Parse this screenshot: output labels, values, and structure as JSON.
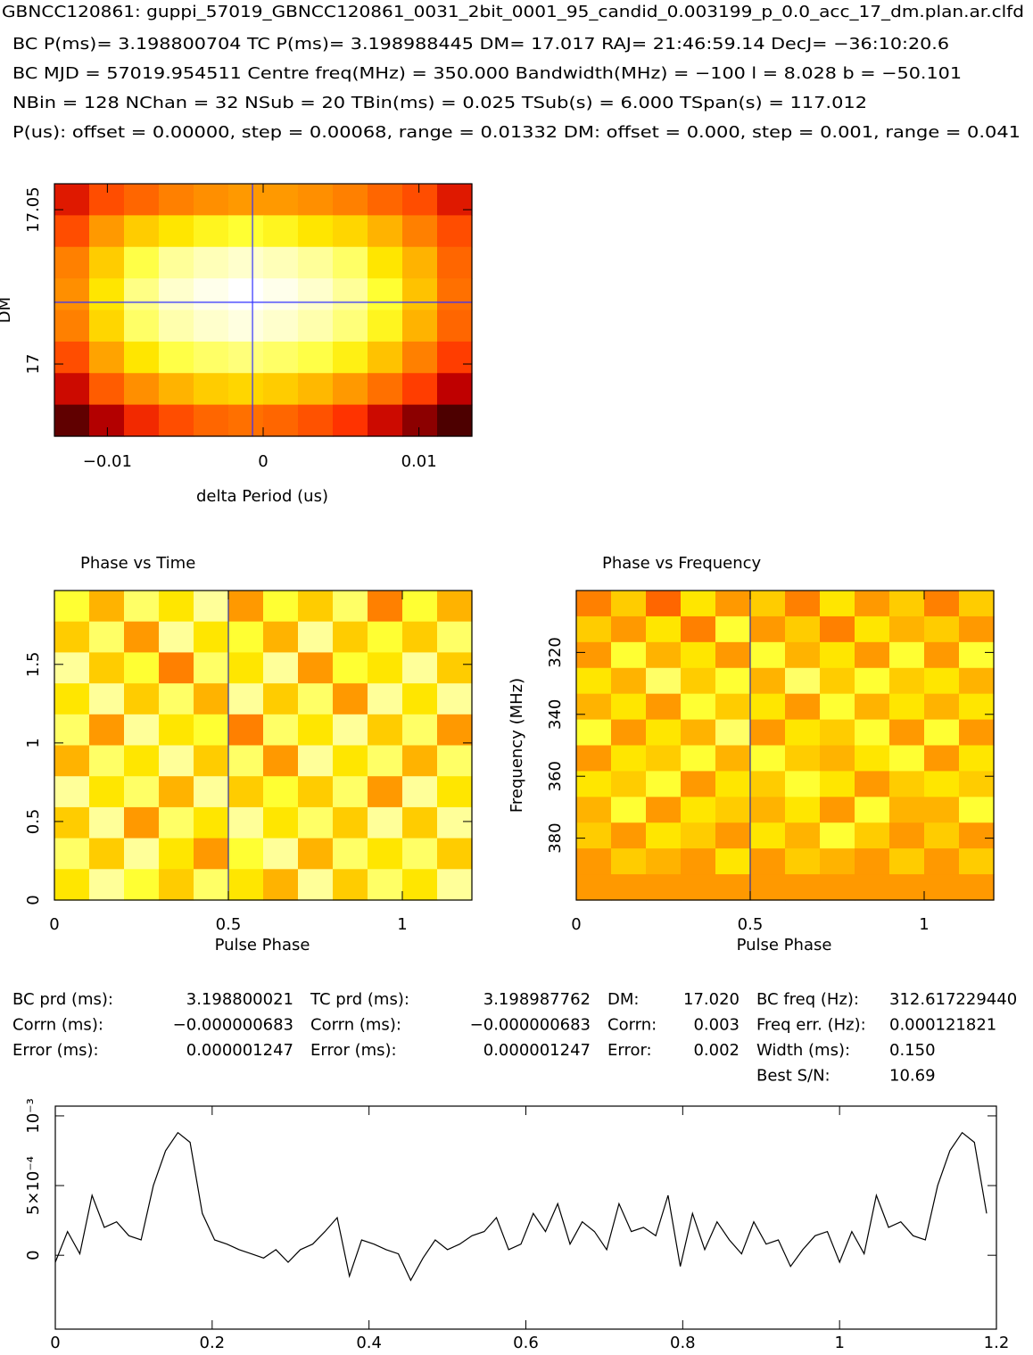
{
  "header": {
    "title": "GBNCC120861: guppi_57019_GBNCC120861_0031_2bit_0001_95_candid_0.003199_p_0.0_acc_17_dm.plan.ar.clfd",
    "lines": [
      "BC P(ms)= 3.198800704 TC P(ms)= 3.198988445 DM= 17.017 RAJ= 21:46:59.14 DecJ= −36:10:20.6",
      "BC MJD = 57019.954511 Centre freq(MHz) = 350.000 Bandwidth(MHz) = −100 l = 8.028 b = −50.101",
      "NBin = 128 NChan = 32 NSub = 20 TBin(ms) = 0.025 TSub(s) = 6.000 TSpan(s) = 117.012",
      "P(us): offset = 0.00000, step = 0.00068, range = 0.01332 DM: offset = 0.000, step = 0.001, range = 0.041"
    ]
  },
  "table": {
    "columns": [
      [
        [
          "BC prd (ms):",
          "3.198800021"
        ],
        [
          "Corrn (ms):",
          "−0.000000683"
        ],
        [
          "Error (ms):",
          "0.000001247"
        ]
      ],
      [
        [
          "TC prd (ms):",
          "3.198987762"
        ],
        [
          "Corrn (ms):",
          "−0.000000683"
        ],
        [
          "Error (ms):",
          "0.000001247"
        ]
      ],
      [
        [
          "DM:",
          "17.020"
        ],
        [
          "Corrn:",
          "0.003"
        ],
        [
          "Error:",
          "0.002"
        ]
      ],
      [
        [
          "BC freq (Hz):",
          "312.617229440"
        ],
        [
          "Freq err. (Hz):",
          "0.000121821"
        ],
        [
          "Width (ms):",
          "0.150"
        ],
        [
          "Best S/N:",
          "10.69"
        ]
      ]
    ]
  },
  "chart_data": [
    {
      "type": "heatmap",
      "xlabel": "delta Period (us)",
      "ylabel": "DM",
      "xlim": [
        -0.0134,
        0.0134
      ],
      "ylim": [
        16.9766,
        17.0584
      ],
      "xticks": [
        {
          "value": -0.01,
          "label": "−0.01"
        },
        0,
        0.01
      ],
      "yticks": [
        17,
        17.05
      ],
      "marker": {
        "x": -0.000683,
        "y": 17.02
      },
      "marker_color": "#3030ff",
      "z": [
        [
          0.35,
          0.45,
          0.5,
          0.55,
          0.58,
          0.6,
          0.6,
          0.58,
          0.55,
          0.5,
          0.45,
          0.35
        ],
        [
          0.45,
          0.6,
          0.7,
          0.75,
          0.78,
          0.8,
          0.78,
          0.75,
          0.72,
          0.65,
          0.55,
          0.45
        ],
        [
          0.55,
          0.7,
          0.82,
          0.9,
          0.93,
          0.95,
          0.93,
          0.9,
          0.85,
          0.75,
          0.65,
          0.5
        ],
        [
          0.58,
          0.75,
          0.88,
          0.95,
          0.98,
          1.0,
          0.98,
          0.95,
          0.9,
          0.8,
          0.68,
          0.52
        ],
        [
          0.55,
          0.72,
          0.85,
          0.92,
          0.95,
          0.97,
          0.95,
          0.92,
          0.87,
          0.78,
          0.65,
          0.5
        ],
        [
          0.45,
          0.62,
          0.75,
          0.82,
          0.85,
          0.87,
          0.85,
          0.82,
          0.77,
          0.68,
          0.55,
          0.42
        ],
        [
          0.32,
          0.48,
          0.58,
          0.65,
          0.7,
          0.72,
          0.7,
          0.66,
          0.6,
          0.52,
          0.42,
          0.3
        ],
        [
          0.15,
          0.28,
          0.38,
          0.45,
          0.5,
          0.52,
          0.5,
          0.46,
          0.4,
          0.32,
          0.22,
          0.12
        ]
      ]
    },
    {
      "type": "heatmap",
      "title": "Phase vs Time",
      "xlabel": "Pulse Phase",
      "xlim": [
        0,
        1.2
      ],
      "ylim": [
        0,
        1.97
      ],
      "xticks": [
        0,
        0.5,
        1
      ],
      "yticks": [
        0,
        0.5,
        1,
        1.5
      ],
      "marker": {
        "x": 0.5
      },
      "marker_color": "#3030a0",
      "z": [
        [
          0.8,
          0.65,
          0.85,
          0.75,
          0.9,
          0.6,
          0.8,
          0.7,
          0.85,
          0.55,
          0.8,
          0.65
        ],
        [
          0.7,
          0.85,
          0.6,
          0.9,
          0.75,
          0.8,
          0.65,
          0.9,
          0.7,
          0.8,
          0.7,
          0.85
        ],
        [
          0.9,
          0.7,
          0.8,
          0.55,
          0.85,
          0.75,
          0.9,
          0.6,
          0.8,
          0.75,
          0.9,
          0.7
        ],
        [
          0.75,
          0.9,
          0.7,
          0.85,
          0.65,
          0.9,
          0.7,
          0.85,
          0.6,
          0.9,
          0.75,
          0.9
        ],
        [
          0.85,
          0.6,
          0.9,
          0.75,
          0.8,
          0.55,
          0.85,
          0.75,
          0.9,
          0.7,
          0.85,
          0.6
        ],
        [
          0.65,
          0.85,
          0.75,
          0.9,
          0.7,
          0.85,
          0.6,
          0.9,
          0.75,
          0.85,
          0.65,
          0.85
        ],
        [
          0.9,
          0.75,
          0.85,
          0.65,
          0.9,
          0.7,
          0.8,
          0.7,
          0.85,
          0.6,
          0.9,
          0.75
        ],
        [
          0.7,
          0.9,
          0.6,
          0.85,
          0.75,
          0.9,
          0.75,
          0.85,
          0.7,
          0.9,
          0.7,
          0.9
        ],
        [
          0.85,
          0.7,
          0.9,
          0.75,
          0.6,
          0.8,
          0.9,
          0.65,
          0.85,
          0.75,
          0.85,
          0.7
        ],
        [
          0.75,
          0.9,
          0.8,
          0.7,
          0.85,
          0.75,
          0.65,
          0.9,
          0.7,
          0.85,
          0.75,
          0.9
        ]
      ]
    },
    {
      "type": "heatmap",
      "title": "Phase vs Frequency",
      "xlabel": "Pulse Phase",
      "ylabel": "Frequency (MHz)",
      "xlim": [
        0,
        1.2
      ],
      "ylim": [
        400,
        300
      ],
      "xticks": [
        0,
        0.5,
        1
      ],
      "yticks": [
        320,
        340,
        360,
        380
      ],
      "marker": {
        "x": 0.5
      },
      "marker_color": "#3030a0",
      "z": [
        [
          0.55,
          0.7,
          0.5,
          0.75,
          0.6,
          0.7,
          0.55,
          0.75,
          0.6,
          0.7,
          0.55,
          0.7
        ],
        [
          0.7,
          0.6,
          0.75,
          0.55,
          0.8,
          0.6,
          0.7,
          0.55,
          0.75,
          0.65,
          0.7,
          0.6
        ],
        [
          0.6,
          0.8,
          0.65,
          0.75,
          0.6,
          0.8,
          0.65,
          0.75,
          0.6,
          0.8,
          0.6,
          0.8
        ],
        [
          0.75,
          0.65,
          0.85,
          0.7,
          0.8,
          0.65,
          0.85,
          0.7,
          0.8,
          0.7,
          0.75,
          0.65
        ],
        [
          0.65,
          0.75,
          0.6,
          0.8,
          0.7,
          0.75,
          0.6,
          0.8,
          0.65,
          0.75,
          0.65,
          0.75
        ],
        [
          0.8,
          0.6,
          0.75,
          0.65,
          0.85,
          0.6,
          0.75,
          0.7,
          0.8,
          0.6,
          0.8,
          0.6
        ],
        [
          0.6,
          0.75,
          0.7,
          0.8,
          0.65,
          0.8,
          0.7,
          0.65,
          0.75,
          0.8,
          0.6,
          0.75
        ],
        [
          0.75,
          0.7,
          0.8,
          0.6,
          0.75,
          0.7,
          0.8,
          0.75,
          0.6,
          0.7,
          0.75,
          0.7
        ],
        [
          0.65,
          0.8,
          0.6,
          0.75,
          0.7,
          0.65,
          0.75,
          0.6,
          0.8,
          0.65,
          0.65,
          0.8
        ],
        [
          0.7,
          0.6,
          0.75,
          0.7,
          0.6,
          0.75,
          0.65,
          0.8,
          0.7,
          0.6,
          0.7,
          0.6
        ],
        [
          0.6,
          0.7,
          0.65,
          0.6,
          0.75,
          0.6,
          0.7,
          0.65,
          0.6,
          0.7,
          0.6,
          0.7
        ],
        [
          0.6,
          0.6,
          0.6,
          0.6,
          0.6,
          0.6,
          0.6,
          0.6,
          0.6,
          0.6,
          0.6,
          0.6
        ]
      ]
    },
    {
      "type": "line",
      "color": "#000000",
      "xlim": [
        0,
        1.2
      ],
      "ylim": [
        -0.00053,
        0.00107
      ],
      "xticks": [
        0,
        0.2,
        0.4,
        0.6,
        0.8,
        1,
        1.2
      ],
      "yticks": [
        0,
        {
          "value": 0.0005,
          "label": "5×10⁻⁴"
        },
        {
          "value": 0.001,
          "label": "10⁻³"
        }
      ],
      "x": [
        0,
        0.0156,
        0.0313,
        0.0469,
        0.0625,
        0.0781,
        0.0938,
        0.1094,
        0.125,
        0.1406,
        0.1563,
        0.1719,
        0.1875,
        0.2031,
        0.2188,
        0.2344,
        0.25,
        0.2656,
        0.2813,
        0.2969,
        0.3125,
        0.3281,
        0.3438,
        0.3594,
        0.375,
        0.3906,
        0.4063,
        0.4219,
        0.4375,
        0.4531,
        0.4688,
        0.4844,
        0.5,
        0.5156,
        0.5313,
        0.5469,
        0.5625,
        0.5781,
        0.5938,
        0.6094,
        0.625,
        0.6406,
        0.6563,
        0.6719,
        0.6875,
        0.7031,
        0.7188,
        0.7344,
        0.75,
        0.7656,
        0.7813,
        0.7969,
        0.8125,
        0.8281,
        0.8438,
        0.8594,
        0.875,
        0.8906,
        0.9063,
        0.9219,
        0.9375,
        0.9531,
        0.9688,
        0.9844,
        1,
        1.0156,
        1.0313,
        1.0469,
        1.0625,
        1.0781,
        1.0938,
        1.1094,
        1.125,
        1.1406,
        1.1563,
        1.1719,
        1.1875
      ],
      "values": [
        -5e-05,
        0.00017,
        1e-05,
        0.00043,
        0.0002,
        0.00024,
        0.00014,
        0.00011,
        0.0005,
        0.00075,
        0.00088,
        0.00081,
        0.0003,
        0.00011,
        8e-05,
        4e-05,
        1e-05,
        -2e-05,
        4e-05,
        -5e-05,
        4e-05,
        8e-05,
        0.00017,
        0.00027,
        -0.00015,
        0.00011,
        8e-05,
        4e-05,
        1e-05,
        -0.00018,
        -2e-05,
        0.00011,
        4e-05,
        8e-05,
        0.00014,
        0.00017,
        0.00027,
        4e-05,
        8e-05,
        0.0003,
        0.00017,
        0.00037,
        8e-05,
        0.00024,
        0.00017,
        4e-05,
        0.00037,
        0.00017,
        0.0002,
        0.00014,
        0.00043,
        -8e-05,
        0.0003,
        4e-05,
        0.00024,
        0.00011,
        1e-05,
        0.00024,
        8e-05,
        0.00011,
        -8e-05,
        4e-05,
        0.00014,
        0.00017,
        -5e-05,
        0.00017,
        1e-05,
        0.00043,
        0.0002,
        0.00024,
        0.00014,
        0.00011,
        0.0005,
        0.00075,
        0.00088,
        0.00081,
        0.0003
      ]
    }
  ]
}
